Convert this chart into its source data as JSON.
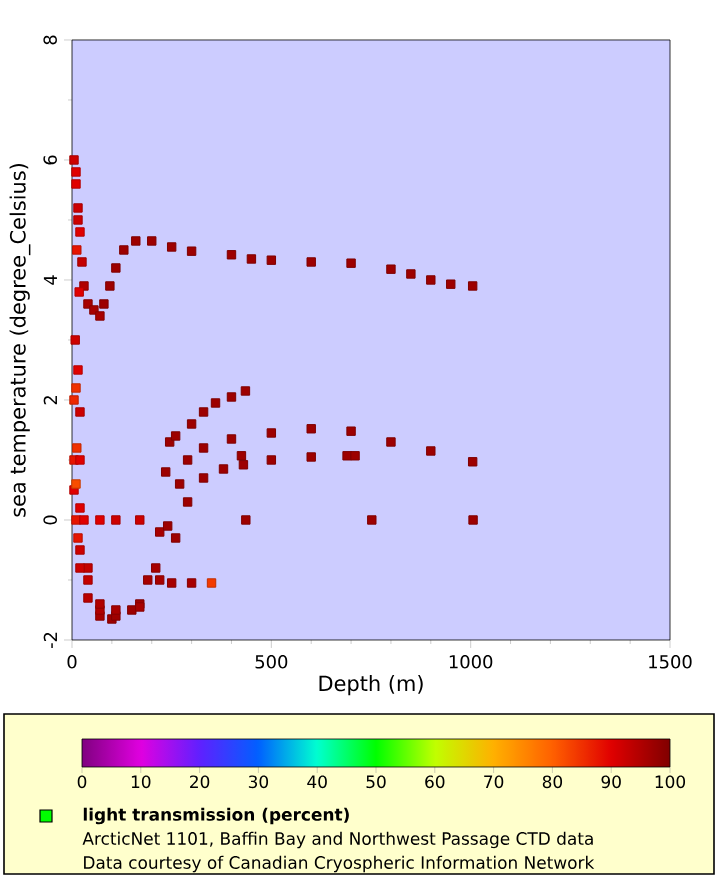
{
  "chart_data": {
    "type": "scatter",
    "xlabel": "Depth (m)",
    "ylabel": "sea temperature (degree_Celsius)",
    "clabel": "light transmission (percent)",
    "annotations": [
      "ArcticNet 1101, Baffin Bay and Northwest Passage CTD data",
      "Data courtesy of Canadian Cryospheric Information Network"
    ],
    "xlim": [
      0,
      1500
    ],
    "ylim": [
      -2,
      8
    ],
    "xticks": [
      0,
      500,
      1000,
      1500
    ],
    "yticks": [
      -2,
      0,
      2,
      4,
      6,
      8
    ],
    "clim": [
      0,
      100
    ],
    "cticks": [
      0,
      10,
      20,
      30,
      40,
      50,
      60,
      70,
      80,
      90,
      100
    ],
    "marker": "square",
    "x": [
      5,
      10,
      15,
      20,
      25,
      30,
      40,
      55,
      70,
      80,
      95,
      110,
      130,
      160,
      200,
      250,
      300,
      400,
      450,
      500,
      600,
      700,
      800,
      850,
      900,
      950,
      1005,
      5,
      20,
      40,
      70,
      100,
      150,
      190,
      220,
      235,
      245,
      260,
      300,
      330,
      360,
      400,
      435,
      5,
      20,
      40,
      70,
      110,
      170,
      210,
      240,
      270,
      290,
      330,
      400,
      500,
      600,
      700,
      800,
      900,
      1005,
      5,
      20,
      40,
      70,
      110,
      170,
      220,
      260,
      290,
      330,
      380,
      430,
      500,
      600,
      690,
      710,
      425,
      10,
      30,
      70,
      110,
      170,
      436,
      752,
      1006,
      250,
      300,
      350,
      10,
      15,
      12,
      18,
      8,
      15,
      10,
      20,
      12,
      10,
      15,
      20
    ],
    "values": [
      6.0,
      5.6,
      5.2,
      4.8,
      4.3,
      3.9,
      3.6,
      3.5,
      3.4,
      3.6,
      3.9,
      4.2,
      4.5,
      4.65,
      4.65,
      4.55,
      4.48,
      4.42,
      4.35,
      4.33,
      4.3,
      4.28,
      4.18,
      4.1,
      4.0,
      3.93,
      3.9,
      0.5,
      -0.5,
      -1.3,
      -1.6,
      -1.65,
      -1.5,
      -1.0,
      -0.2,
      0.8,
      1.3,
      1.4,
      1.6,
      1.8,
      1.95,
      2.05,
      2.15,
      1.0,
      0.2,
      -1.0,
      -1.5,
      -1.6,
      -1.4,
      -0.8,
      -0.1,
      0.6,
      1.0,
      1.2,
      1.35,
      1.45,
      1.52,
      1.48,
      1.3,
      1.15,
      0.97,
      2.0,
      1.0,
      -0.8,
      -1.4,
      -1.5,
      -1.45,
      -1.0,
      -0.3,
      0.3,
      0.7,
      0.85,
      0.92,
      1.0,
      1.05,
      1.07,
      1.07,
      1.07,
      0,
      0,
      0,
      0,
      0,
      0,
      0,
      0,
      -1.05,
      -1.05,
      -1.05,
      5.8,
      5.0,
      4.5,
      3.8,
      3.0,
      2.5,
      2.2,
      1.8,
      1.2,
      0.6,
      -0.3,
      -0.8
    ],
    "cvalues": [
      92,
      90,
      92,
      90,
      93,
      95,
      96,
      96,
      96,
      97,
      97,
      97,
      97,
      97,
      97,
      97,
      97,
      97,
      97,
      97,
      97,
      97,
      97,
      97,
      97,
      97,
      97,
      90,
      92,
      94,
      96,
      97,
      97,
      96,
      96,
      97,
      97,
      97,
      97,
      97,
      97,
      97,
      97,
      88,
      90,
      93,
      95,
      97,
      97,
      96,
      97,
      97,
      97,
      97,
      97,
      97,
      97,
      97,
      97,
      97,
      97,
      86,
      90,
      93,
      95,
      96,
      96,
      96,
      97,
      97,
      97,
      97,
      97,
      97,
      97,
      97,
      97,
      97,
      88,
      90,
      90,
      92,
      92,
      97,
      97,
      97,
      96,
      96,
      84,
      90,
      92,
      88,
      90,
      92,
      90,
      85,
      92,
      85,
      82,
      88,
      92
    ]
  }
}
